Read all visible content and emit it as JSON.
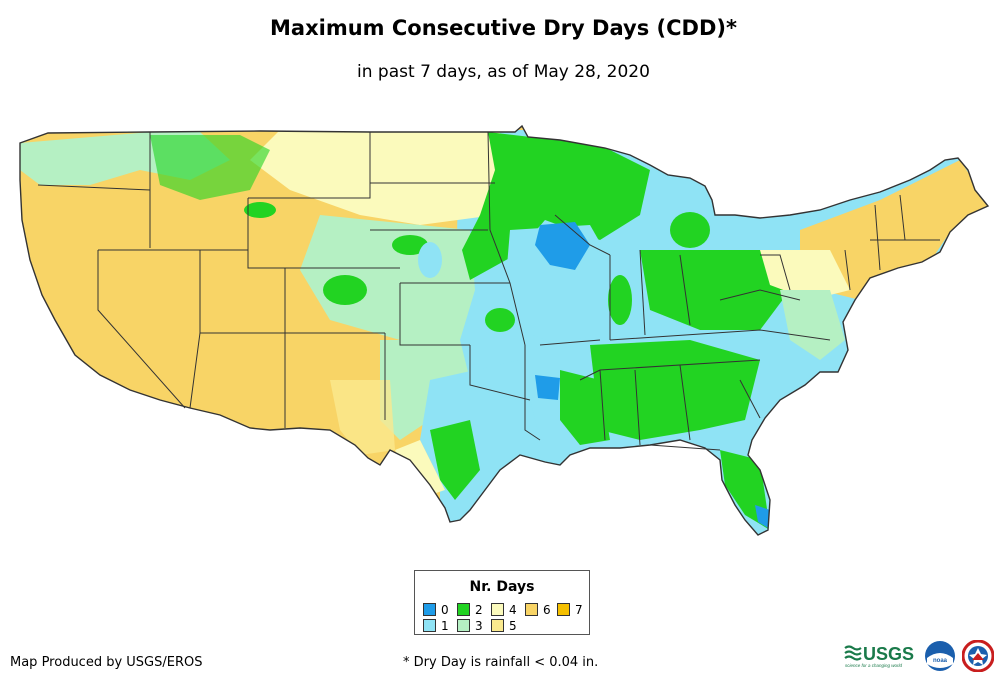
{
  "title": "Maximum Consecutive Dry Days (CDD)*",
  "subtitle": "in past 7 days, as of May 28, 2020",
  "legend": {
    "title": "Nr. Days",
    "items": [
      {
        "label": "0",
        "color": "#1f9ce8"
      },
      {
        "label": "1",
        "color": "#8fe3f5"
      },
      {
        "label": "2",
        "color": "#22d322"
      },
      {
        "label": "3",
        "color": "#b5f0c3"
      },
      {
        "label": "4",
        "color": "#fbfabc"
      },
      {
        "label": "5",
        "color": "#fae98e"
      },
      {
        "label": "6",
        "color": "#f8d466"
      },
      {
        "label": "7",
        "color": "#f5c000"
      }
    ]
  },
  "footer": {
    "producer": "Map Produced by USGS/EROS",
    "note": "* Dry Day is rainfall < 0.04 in."
  },
  "logos": {
    "usgs": "USGS",
    "usgs_tagline": "science for a changing world",
    "noaa": "noaa"
  },
  "colors": {
    "border": "#333333",
    "ocean": "#ffffff"
  }
}
